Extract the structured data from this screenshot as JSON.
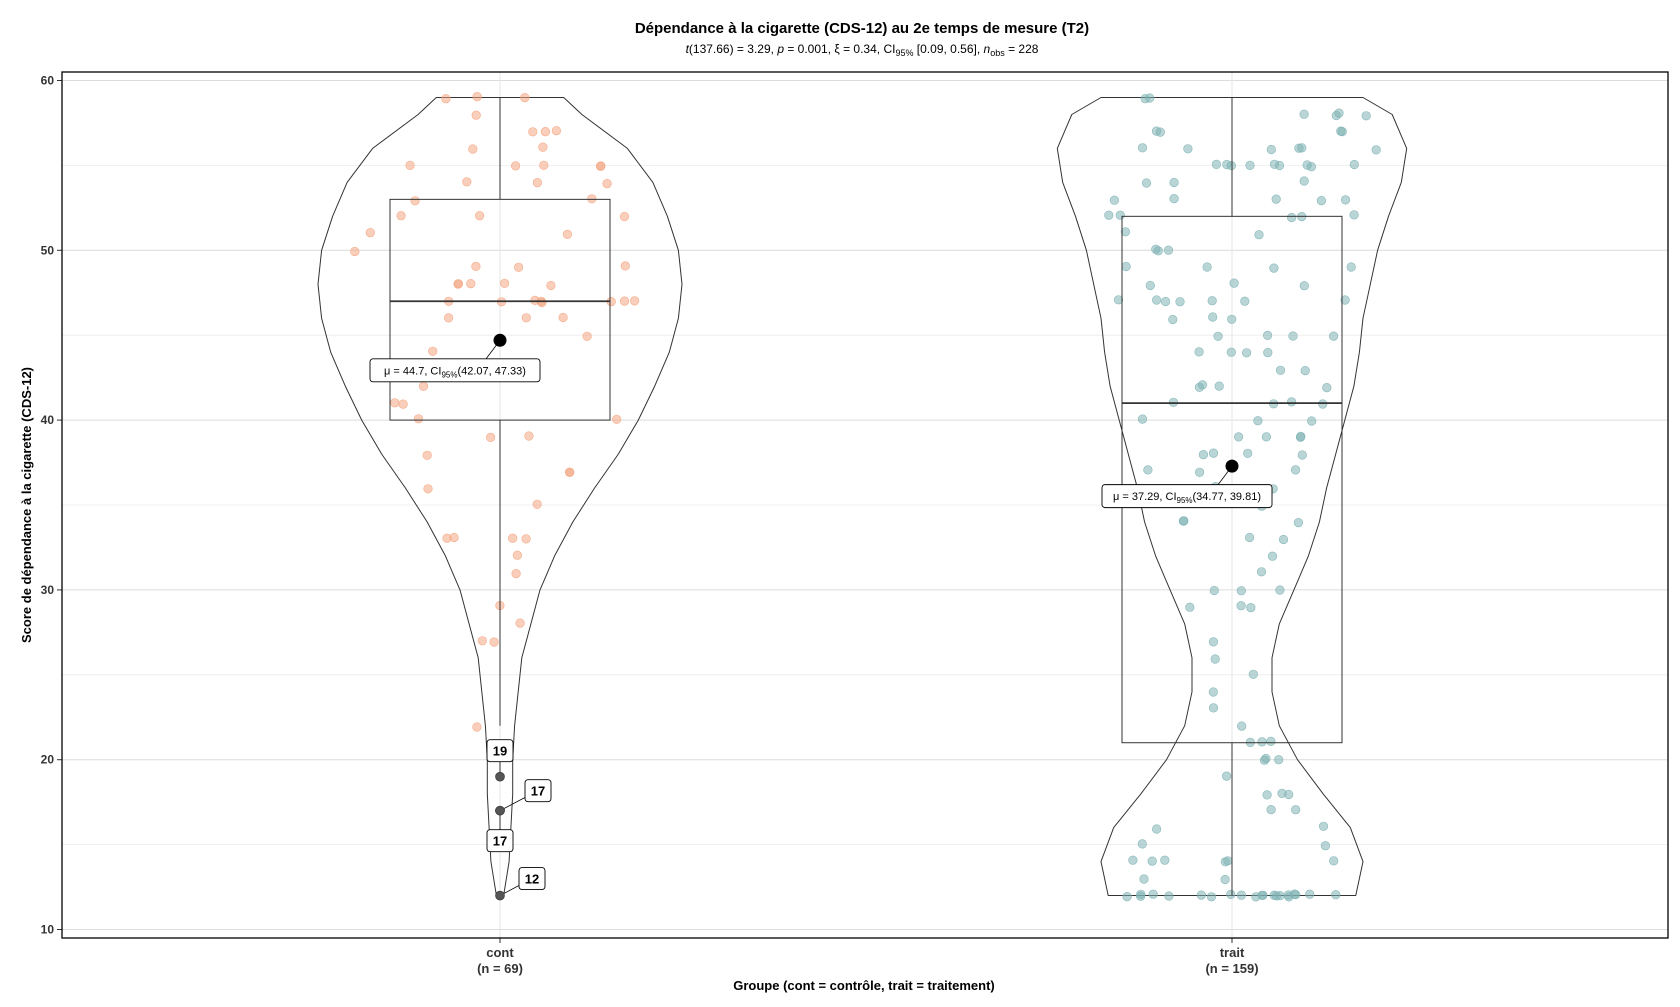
{
  "chart_data": {
    "type": "violin",
    "title": "Dépendance à la cigarette (CDS-12) au 2e temps de mesure (T2)",
    "subtitle": {
      "t_stat": "t",
      "t_rest": "(137.66) = 3.29, ",
      "p_sym": "p",
      "p_rest": " = 0.001, ξ = 0.34, CI",
      "ci_sub": "95%",
      "ci_rest": " [0.09, 0.56], ",
      "n_sym": "n",
      "n_sub": "obs",
      "n_rest": " = 228"
    },
    "xlabel": "Groupe (cont = contrôle, trait = traitement)",
    "ylabel": "Score de dépendance à la cigarette (CDS-12)",
    "ylim": [
      9.5,
      60.5
    ],
    "yticks": [
      10,
      20,
      30,
      40,
      50,
      60
    ],
    "grid": true,
    "groups": [
      {
        "name": "cont",
        "n_label": "(n = 69)",
        "color": "#f4a582",
        "box": {
          "q1": 40,
          "median": 47,
          "q3": 53,
          "whisker_low": 22,
          "whisker_high": 59
        },
        "mean": 44.7,
        "mean_label": {
          "prefix": "μ = 44.7, CI",
          "sub": "95%",
          "suffix": "(42.07, 47.33)"
        },
        "violin": [
          [
            12,
            0.02
          ],
          [
            14,
            0.05
          ],
          [
            16,
            0.06
          ],
          [
            18,
            0.07
          ],
          [
            20,
            0.07
          ],
          [
            22,
            0.08
          ],
          [
            24,
            0.1
          ],
          [
            26,
            0.12
          ],
          [
            28,
            0.17
          ],
          [
            30,
            0.22
          ],
          [
            32,
            0.3
          ],
          [
            34,
            0.4
          ],
          [
            36,
            0.52
          ],
          [
            38,
            0.65
          ],
          [
            40,
            0.76
          ],
          [
            42,
            0.85
          ],
          [
            44,
            0.93
          ],
          [
            46,
            0.98
          ],
          [
            48,
            1.0
          ],
          [
            50,
            0.98
          ],
          [
            52,
            0.92
          ],
          [
            54,
            0.84
          ],
          [
            56,
            0.7
          ],
          [
            58,
            0.45
          ],
          [
            59,
            0.35
          ]
        ],
        "outliers": [
          {
            "value": 19,
            "label": "19"
          },
          {
            "value": 17,
            "label": "17"
          },
          {
            "value": 17,
            "label": "17"
          },
          {
            "value": 12,
            "label": "12"
          }
        ],
        "points": [
          59,
          59,
          59,
          58,
          57,
          57,
          57,
          56,
          56,
          55,
          55,
          55,
          55,
          54,
          54,
          54,
          53,
          52,
          52,
          52,
          51,
          51,
          49,
          49,
          49,
          48,
          48,
          48,
          48,
          48,
          47,
          47,
          47,
          47,
          47,
          47,
          47,
          46,
          46,
          46,
          45,
          41,
          41,
          40,
          40,
          39,
          39,
          38,
          37,
          37,
          35,
          33,
          33,
          33,
          33,
          32,
          28,
          27,
          27,
          22,
          47,
          50,
          53,
          55,
          44,
          42,
          36,
          31,
          29
        ]
      },
      {
        "name": "trait",
        "n_label": "(n = 159)",
        "color": "#7fb3b5",
        "box": {
          "q1": 21,
          "median": 41,
          "q3": 52,
          "whisker_low": 12,
          "whisker_high": 59
        },
        "mean": 37.29,
        "mean_label": {
          "prefix": "μ = 37.29, CI",
          "sub": "95%",
          "suffix": "(34.77, 39.81)"
        },
        "violin": [
          [
            12,
            0.68
          ],
          [
            14,
            0.72
          ],
          [
            16,
            0.65
          ],
          [
            18,
            0.5
          ],
          [
            20,
            0.36
          ],
          [
            22,
            0.26
          ],
          [
            24,
            0.22
          ],
          [
            26,
            0.22
          ],
          [
            28,
            0.26
          ],
          [
            30,
            0.34
          ],
          [
            32,
            0.42
          ],
          [
            34,
            0.48
          ],
          [
            36,
            0.52
          ],
          [
            38,
            0.57
          ],
          [
            40,
            0.62
          ],
          [
            42,
            0.67
          ],
          [
            44,
            0.7
          ],
          [
            46,
            0.72
          ],
          [
            48,
            0.76
          ],
          [
            50,
            0.8
          ],
          [
            52,
            0.86
          ],
          [
            54,
            0.93
          ],
          [
            56,
            0.96
          ],
          [
            58,
            0.88
          ],
          [
            59,
            0.72
          ]
        ],
        "outliers": [],
        "points": [
          59,
          59,
          58,
          58,
          58,
          58,
          57,
          57,
          57,
          57,
          56,
          56,
          56,
          56,
          56,
          56,
          55,
          55,
          55,
          55,
          55,
          55,
          55,
          55,
          55,
          54,
          54,
          54,
          53,
          53,
          53,
          53,
          53,
          52,
          52,
          52,
          52,
          52,
          51,
          51,
          50,
          50,
          50,
          49,
          49,
          49,
          49,
          48,
          48,
          48,
          47,
          47,
          47,
          47,
          47,
          47,
          47,
          46,
          46,
          45,
          45,
          45,
          45,
          44,
          44,
          44,
          44,
          43,
          43,
          42,
          42,
          42,
          42,
          41,
          41,
          41,
          41,
          40,
          40,
          39,
          39,
          39,
          39,
          38,
          38,
          38,
          38,
          37,
          37,
          37,
          36,
          35,
          34,
          34,
          34,
          33,
          32,
          31,
          30,
          30,
          30,
          29,
          29,
          29,
          24,
          23,
          22,
          21,
          21,
          21,
          20,
          20,
          20,
          18,
          18,
          18,
          17,
          17,
          16,
          16,
          15,
          15,
          14,
          14,
          14,
          14,
          14,
          14,
          13,
          13,
          12,
          12,
          12,
          12,
          12,
          12,
          12,
          12,
          12,
          12,
          12,
          12,
          12,
          12,
          12,
          12,
          12,
          12,
          12,
          12,
          12,
          40,
          36,
          27,
          25,
          19,
          26,
          33,
          46
        ]
      }
    ]
  }
}
